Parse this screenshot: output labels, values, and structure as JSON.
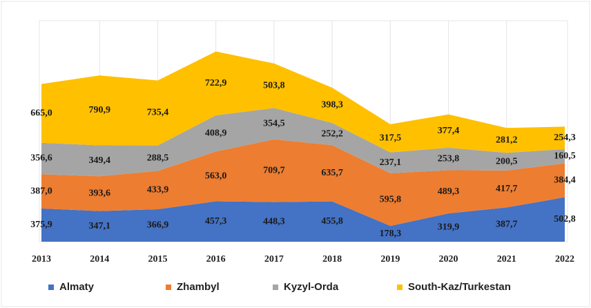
{
  "chart_data": {
    "type": "stacked-area",
    "categories": [
      "2013",
      "2014",
      "2015",
      "2016",
      "2017",
      "2018",
      "2019",
      "2020",
      "2021",
      "2022"
    ],
    "series": [
      {
        "name": "Almaty",
        "color": "#4472c4",
        "values": [
          375.9,
          347.1,
          366.9,
          457.3,
          448.3,
          455.8,
          178.3,
          319.9,
          387.7,
          502.8
        ],
        "value_labels": [
          "375,9",
          "347,1",
          "366,9",
          "457,3",
          "448,3",
          "455,8",
          "178,3",
          "319,9",
          "387,7",
          "502,8"
        ]
      },
      {
        "name": "Zhambyl",
        "color": "#ed7d31",
        "values": [
          387.0,
          393.6,
          433.9,
          563.0,
          709.7,
          635.7,
          595.8,
          489.3,
          417.7,
          384.4
        ],
        "value_labels": [
          "387,0",
          "393,6",
          "433,9",
          "563,0",
          "709,7",
          "635,7",
          "595,8",
          "489,3",
          "417,7",
          "384,4"
        ]
      },
      {
        "name": "Kyzyl-Orda",
        "color": "#a5a5a5",
        "values": [
          356.6,
          349.4,
          288.5,
          408.9,
          354.5,
          252.2,
          237.1,
          253.8,
          200.5,
          160.5
        ],
        "value_labels": [
          "356,6",
          "349,4",
          "288,5",
          "408,9",
          "354,5",
          "252,2",
          "237,1",
          "253,8",
          "200,5",
          "160,5"
        ]
      },
      {
        "name": "South-Kaz/Turkestan",
        "color": "#ffc000",
        "values": [
          665.0,
          790.9,
          735.4,
          722.9,
          503.8,
          398.3,
          317.5,
          377.4,
          281.2,
          254.3
        ],
        "value_labels": [
          "665,0",
          "790,9",
          "735,4",
          "722,9",
          "503,8",
          "398,3",
          "317,5",
          "377,4",
          "281,2",
          "254,3"
        ]
      }
    ],
    "ylim": [
      0,
      2500
    ],
    "grid": true,
    "legend": "bottom"
  }
}
